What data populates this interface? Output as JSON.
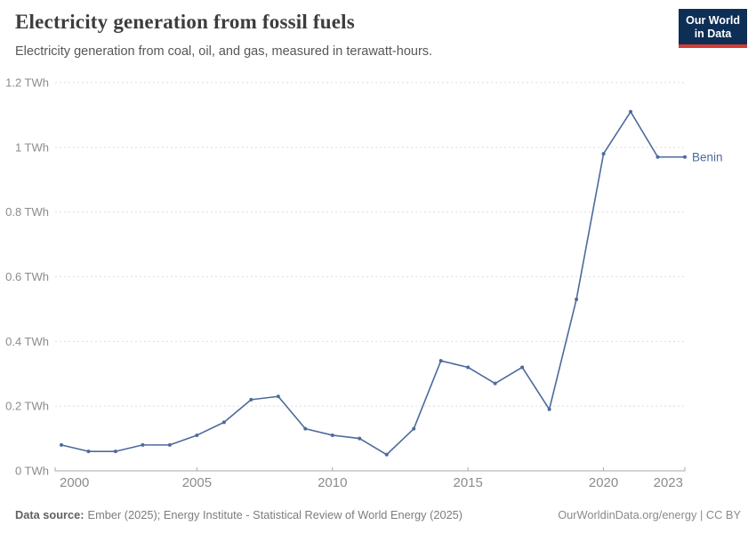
{
  "header": {
    "title": "Electricity generation from fossil fuels",
    "subtitle": "Electricity generation from coal, oil, and gas, measured in terawatt-hours.",
    "logo": {
      "line1": "Our World",
      "line2": "in Data"
    }
  },
  "chart_data": {
    "type": "line",
    "title": "Electricity generation from fossil fuels",
    "ylabel": "",
    "xlabel": "",
    "unit": "TWh",
    "xlim": [
      2000,
      2023
    ],
    "ylim": [
      0,
      1.2
    ],
    "grid": "horizontal-dashed",
    "legend_position": "end-of-line-label",
    "x": [
      2000,
      2001,
      2002,
      2003,
      2004,
      2005,
      2006,
      2007,
      2008,
      2009,
      2010,
      2011,
      2012,
      2013,
      2014,
      2015,
      2016,
      2017,
      2018,
      2019,
      2020,
      2021,
      2022,
      2023
    ],
    "series": [
      {
        "name": "Benin",
        "color": "#4C6A9C",
        "values": [
          0.08,
          0.06,
          0.06,
          0.08,
          0.08,
          0.11,
          0.15,
          0.22,
          0.23,
          0.13,
          0.11,
          0.1,
          0.05,
          0.13,
          0.34,
          0.32,
          0.27,
          0.32,
          0.19,
          0.53,
          0.98,
          1.11,
          0.97,
          0.97
        ]
      }
    ],
    "y_ticks": [
      {
        "value": 0,
        "label": "0 TWh"
      },
      {
        "value": 0.2,
        "label": "0.2 TWh"
      },
      {
        "value": 0.4,
        "label": "0.4 TWh"
      },
      {
        "value": 0.6,
        "label": "0.6 TWh"
      },
      {
        "value": 0.8,
        "label": "0.8 TWh"
      },
      {
        "value": 1,
        "label": "1 TWh"
      },
      {
        "value": 1.2,
        "label": "1.2 TWh"
      }
    ],
    "x_ticks": [
      {
        "value": 2000,
        "label": "2000"
      },
      {
        "value": 2005,
        "label": "2005"
      },
      {
        "value": 2010,
        "label": "2010"
      },
      {
        "value": 2015,
        "label": "2015"
      },
      {
        "value": 2020,
        "label": "2020"
      },
      {
        "value": 2023,
        "label": "2023"
      }
    ]
  },
  "footer": {
    "datasource_label": "Data source:",
    "datasource_text": "Ember (2025); Energy Institute - Statistical Review of World Energy (2025)",
    "credit": "OurWorldinData.org/energy | CC BY"
  },
  "colors": {
    "line": "#4C6A9C",
    "grid": "#dedede",
    "axis": "#a8a8a8",
    "tick_label": "#8c8c8c",
    "logo_bg": "#0d2e55",
    "logo_red": "#d73a34"
  }
}
